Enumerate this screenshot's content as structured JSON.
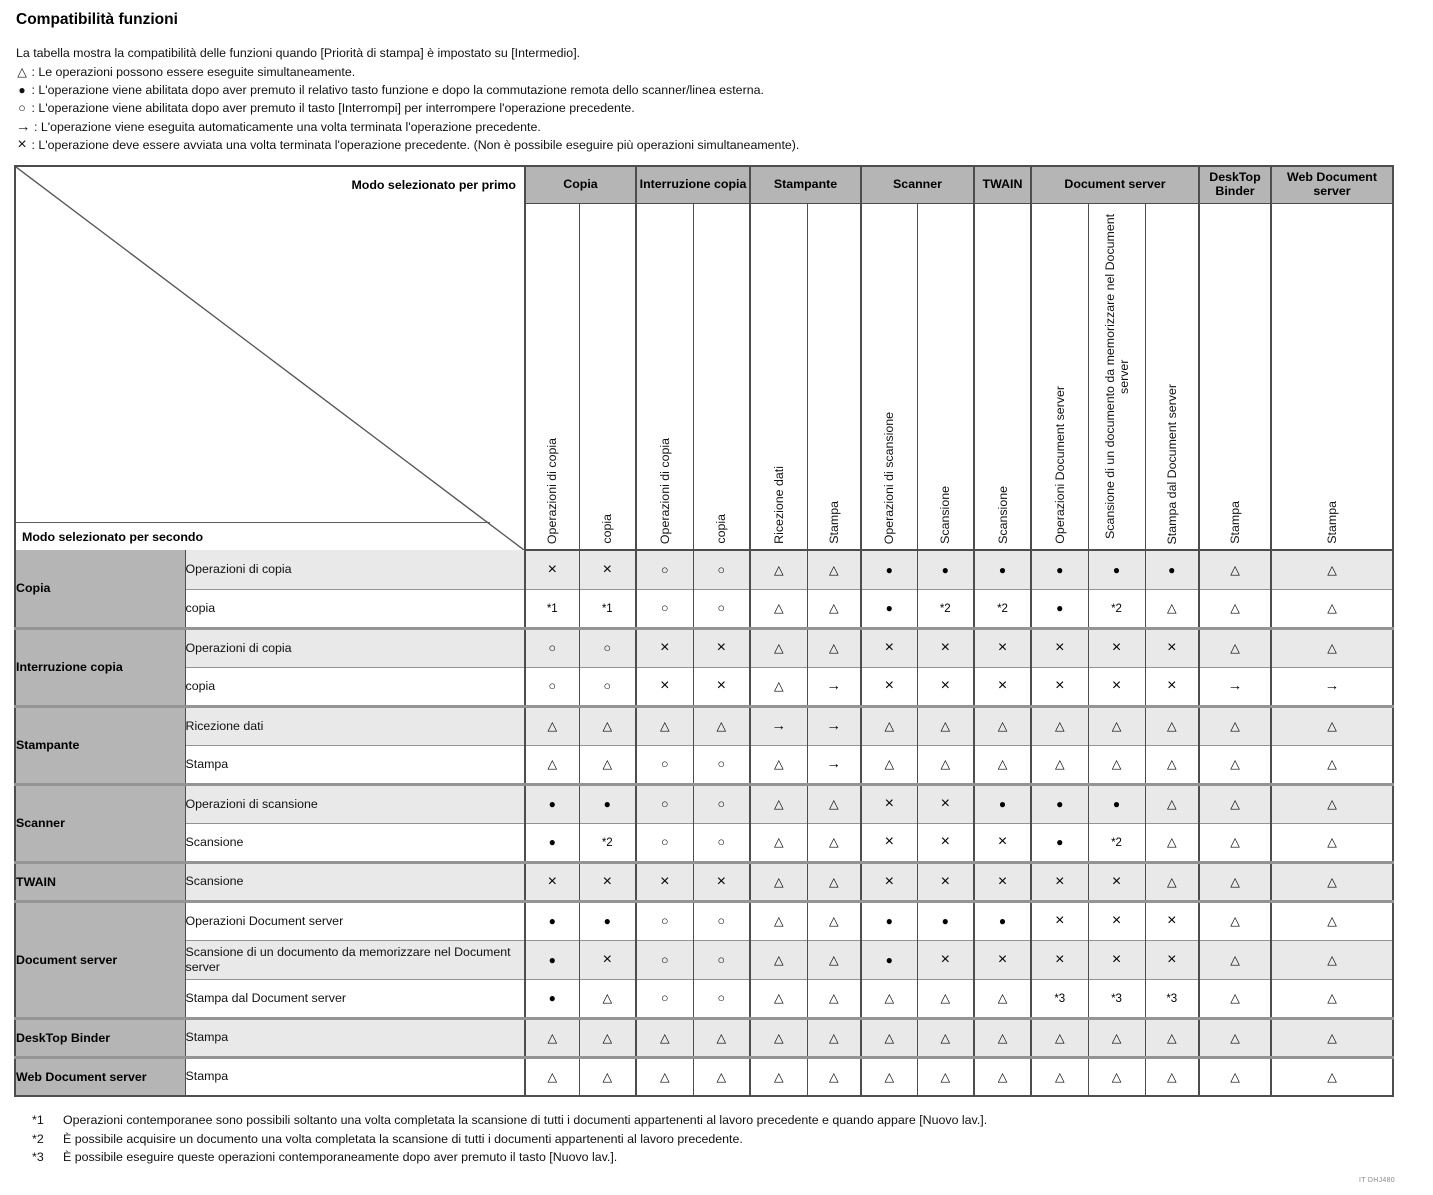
{
  "page": {
    "title": "Compatibilità funzioni",
    "intro": "La tabella mostra la compatibilità delle funzioni quando [Priorità di stampa] è impostato su [Intermedio].",
    "legend": [
      {
        "symbol": "△",
        "text": "Le operazioni possono essere eseguite simultaneamente."
      },
      {
        "symbol": "●",
        "text": "L'operazione viene abilitata dopo aver premuto il relativo tasto funzione e dopo la commutazione remota dello scanner/linea esterna."
      },
      {
        "symbol": "○",
        "text": "L'operazione viene abilitata dopo aver premuto il tasto [Interrompi] per interrompere l'operazione precedente."
      },
      {
        "symbol": "→",
        "text": "L'operazione viene eseguita automaticamente una volta terminata l'operazione precedente."
      },
      {
        "symbol": "×",
        "text": "L'operazione deve essere avviata una volta terminata l'operazione precedente. (Non è possibile eseguire più operazioni simultaneamente)."
      }
    ],
    "footnotes": [
      {
        "marker": "*1",
        "text": "Operazioni contemporanee sono possibili soltanto una volta completata la scansione di tutti i documenti appartenenti al lavoro precedente e quando appare [Nuovo lav.]."
      },
      {
        "marker": "*2",
        "text": "È possibile acquisire un documento una volta completata la scansione di tutti i documenti appartenenti al lavoro precedente."
      },
      {
        "marker": "*3",
        "text": "È possibile eseguire queste operazioni contemporaneamente dopo aver premuto il tasto [Nuovo lav.]."
      }
    ],
    "doc_code": "IT DHJ480"
  },
  "table": {
    "corner": {
      "first_label": "Modo selezionato per primo",
      "second_label": "Modo selezionato per secondo"
    },
    "column_groups": [
      {
        "label": "Copia",
        "span": 2
      },
      {
        "label": "Interruzione copia",
        "span": 2
      },
      {
        "label": "Stampante",
        "span": 2
      },
      {
        "label": "Scanner",
        "span": 2
      },
      {
        "label": "TWAIN",
        "span": 1
      },
      {
        "label": "Document server",
        "span": 3
      },
      {
        "label": "DeskTop Binder",
        "span": 1
      },
      {
        "label": "Web Document server",
        "span": 1
      }
    ],
    "columns": [
      "Operazioni di copia",
      "copia",
      "Operazioni di copia",
      "copia",
      "Ricezione dati",
      "Stampa",
      "Operazioni di scansione",
      "Scansione",
      "Scansione",
      "Operazioni Document server",
      "Scansione di un documento da memorizzare nel Document server",
      "Stampa dal Document server",
      "Stampa",
      "Stampa"
    ],
    "row_groups": [
      {
        "label": "Copia",
        "rows": [
          {
            "label": "Operazioni di copia",
            "cells": [
              "×",
              "×",
              "○",
              "○",
              "△",
              "△",
              "●",
              "●",
              "●",
              "●",
              "●",
              "●",
              "△",
              "△"
            ]
          },
          {
            "label": "copia",
            "cells": [
              "*1",
              "*1",
              "○",
              "○",
              "△",
              "△",
              "●",
              "*2",
              "*2",
              "●",
              "*2",
              "△",
              "△",
              "△"
            ]
          }
        ]
      },
      {
        "label": "Interruzione copia",
        "rows": [
          {
            "label": "Operazioni di copia",
            "cells": [
              "○",
              "○",
              "×",
              "×",
              "△",
              "△",
              "×",
              "×",
              "×",
              "×",
              "×",
              "×",
              "△",
              "△"
            ]
          },
          {
            "label": "copia",
            "cells": [
              "○",
              "○",
              "×",
              "×",
              "△",
              "→",
              "×",
              "×",
              "×",
              "×",
              "×",
              "×",
              "→",
              "→"
            ]
          }
        ]
      },
      {
        "label": "Stampante",
        "rows": [
          {
            "label": "Ricezione dati",
            "cells": [
              "△",
              "△",
              "△",
              "△",
              "→",
              "→",
              "△",
              "△",
              "△",
              "△",
              "△",
              "△",
              "△",
              "△"
            ]
          },
          {
            "label": "Stampa",
            "cells": [
              "△",
              "△",
              "○",
              "○",
              "△",
              "→",
              "△",
              "△",
              "△",
              "△",
              "△",
              "△",
              "△",
              "△"
            ]
          }
        ]
      },
      {
        "label": "Scanner",
        "rows": [
          {
            "label": "Operazioni di scansione",
            "cells": [
              "●",
              "●",
              "○",
              "○",
              "△",
              "△",
              "×",
              "×",
              "●",
              "●",
              "●",
              "△",
              "△",
              "△"
            ]
          },
          {
            "label": "Scansione",
            "cells": [
              "●",
              "*2",
              "○",
              "○",
              "△",
              "△",
              "×",
              "×",
              "×",
              "●",
              "*2",
              "△",
              "△",
              "△"
            ]
          }
        ]
      },
      {
        "label": "TWAIN",
        "rows": [
          {
            "label": "Scansione",
            "cells": [
              "×",
              "×",
              "×",
              "×",
              "△",
              "△",
              "×",
              "×",
              "×",
              "×",
              "×",
              "△",
              "△",
              "△"
            ]
          }
        ]
      },
      {
        "label": "Document server",
        "rows": [
          {
            "label": "Operazioni Document server",
            "cells": [
              "●",
              "●",
              "○",
              "○",
              "△",
              "△",
              "●",
              "●",
              "●",
              "×",
              "×",
              "×",
              "△",
              "△"
            ]
          },
          {
            "label": "Scansione di un documento da memorizzare nel Document server",
            "cells": [
              "●",
              "×",
              "○",
              "○",
              "△",
              "△",
              "●",
              "×",
              "×",
              "×",
              "×",
              "×",
              "△",
              "△"
            ]
          },
          {
            "label": "Stampa dal Document server",
            "cells": [
              "●",
              "△",
              "○",
              "○",
              "△",
              "△",
              "△",
              "△",
              "△",
              "*3",
              "*3",
              "*3",
              "△",
              "△"
            ]
          }
        ]
      },
      {
        "label": "DeskTop Binder",
        "rows": [
          {
            "label": "Stampa",
            "cells": [
              "△",
              "△",
              "△",
              "△",
              "△",
              "△",
              "△",
              "△",
              "△",
              "△",
              "△",
              "△",
              "△",
              "△"
            ]
          }
        ]
      },
      {
        "label": "Web Document server",
        "rows": [
          {
            "label": "Stampa",
            "cells": [
              "△",
              "△",
              "△",
              "△",
              "△",
              "△",
              "△",
              "△",
              "△",
              "△",
              "△",
              "△",
              "△",
              "△"
            ]
          }
        ]
      }
    ]
  },
  "colors": {
    "header_gray": "#b5b5b5",
    "row_stripe_gray": "#e9e9e9",
    "border_dark": "#4d4d4d",
    "border_light": "#949494"
  }
}
